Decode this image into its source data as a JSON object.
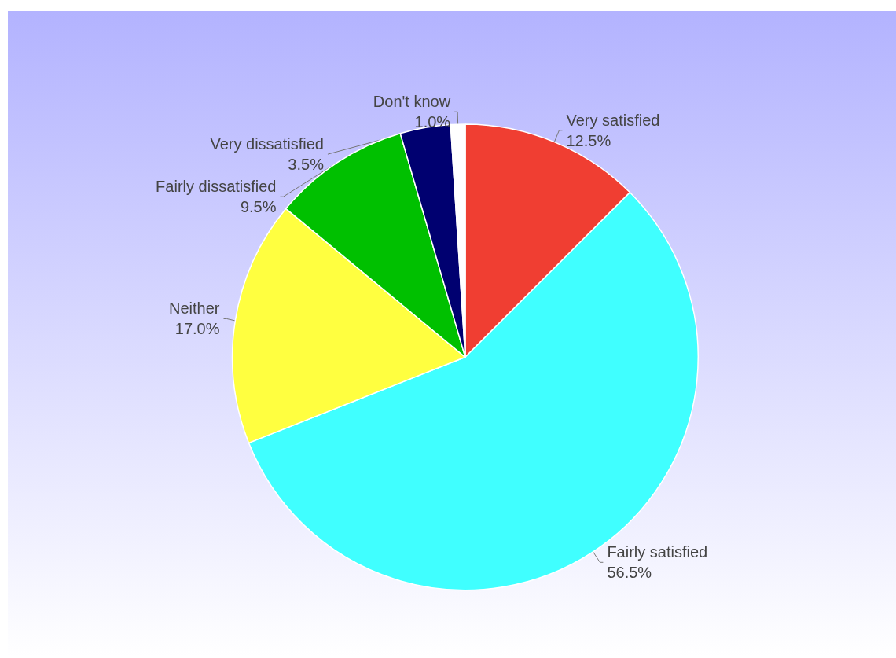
{
  "chart_data": {
    "type": "pie",
    "categories": [
      "Very satisfied",
      "Fairly satisfied",
      "Neither",
      "Fairly dissatisfied",
      "Very dissatisfied",
      "Don't know"
    ],
    "values": [
      12.5,
      56.5,
      17.0,
      9.5,
      3.5,
      1.0
    ],
    "value_labels": [
      "12.5%",
      "56.5%",
      "17.0%",
      "9.5%",
      "3.5%",
      "1.0%"
    ],
    "colors": [
      "#f03e32",
      "#40ffff",
      "#ffff40",
      "#00c000",
      "#000070",
      "#ffffff"
    ],
    "legend": false
  }
}
